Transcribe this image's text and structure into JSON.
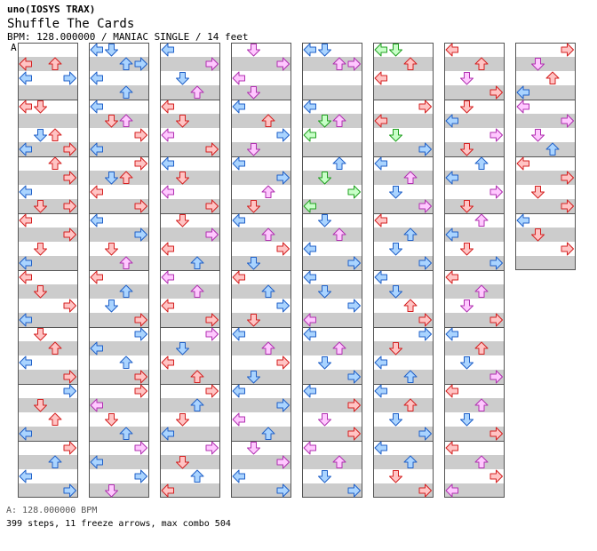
{
  "artist": "uno(IOSYS TRAX)",
  "title": "Shuffle The Cards",
  "info": "BPM: 128.000000 / MANIAC SINGLE / 14 feet",
  "bpm_marker": "A",
  "bpm_legend": "A: 128.000000 BPM",
  "stats": "399 steps, 11 freeze arrows, max combo 504",
  "colors": {
    "red_fill": "#ffc4c4",
    "red_stroke": "#d42020",
    "blue_fill": "#aad4ff",
    "blue_stroke": "#2060c8",
    "pink_fill": "#ffc8ff",
    "pink_stroke": "#b030b0",
    "green_fill": "#c8ffc8",
    "green_stroke": "#20a020",
    "stripe": "#cccccc",
    "border": "#555555"
  },
  "chart_data": {
    "type": "step-chart",
    "columns": 8,
    "measures_per_column": [
      8,
      8,
      8,
      8,
      8,
      8,
      8,
      4
    ],
    "lanes": [
      "left",
      "down",
      "up",
      "right"
    ],
    "notes": [
      [
        [
          0,
          1,
          0,
          "red"
        ],
        [
          0,
          1,
          2,
          "red"
        ],
        [
          0,
          2,
          0,
          "blue"
        ],
        [
          0,
          2,
          3,
          "blue"
        ],
        [
          1,
          0,
          0,
          "red"
        ],
        [
          1,
          0,
          1,
          "red"
        ],
        [
          1,
          2,
          1,
          "blue"
        ],
        [
          1,
          2,
          2,
          "red"
        ],
        [
          1,
          3,
          0,
          "blue"
        ],
        [
          1,
          3,
          3,
          "red"
        ],
        [
          2,
          0,
          2,
          "red"
        ],
        [
          2,
          1,
          3,
          "red"
        ],
        [
          2,
          2,
          0,
          "blue"
        ],
        [
          2,
          3,
          1,
          "red"
        ],
        [
          2,
          3,
          3,
          "red"
        ],
        [
          3,
          0,
          0,
          "red"
        ],
        [
          3,
          1,
          3,
          "red"
        ],
        [
          3,
          2,
          1,
          "red"
        ],
        [
          3,
          3,
          0,
          "blue"
        ],
        [
          4,
          0,
          0,
          "red"
        ],
        [
          4,
          1,
          1,
          "red"
        ],
        [
          4,
          2,
          3,
          "red"
        ],
        [
          4,
          3,
          0,
          "blue"
        ],
        [
          5,
          0,
          1,
          "red"
        ],
        [
          5,
          1,
          2,
          "red"
        ],
        [
          5,
          2,
          0,
          "blue"
        ],
        [
          5,
          3,
          3,
          "red"
        ],
        [
          6,
          0,
          3,
          "blue"
        ],
        [
          6,
          1,
          1,
          "red"
        ],
        [
          6,
          2,
          2,
          "red"
        ],
        [
          6,
          3,
          0,
          "blue"
        ],
        [
          7,
          0,
          3,
          "red"
        ],
        [
          7,
          1,
          2,
          "blue"
        ],
        [
          7,
          2,
          0,
          "blue"
        ],
        [
          7,
          3,
          3,
          "blue"
        ]
      ],
      [
        [
          0,
          0,
          0,
          "blue"
        ],
        [
          0,
          0,
          1,
          "blue"
        ],
        [
          0,
          1,
          2,
          "blue"
        ],
        [
          0,
          1,
          3,
          "blue"
        ],
        [
          0,
          2,
          0,
          "blue"
        ],
        [
          0,
          3,
          2,
          "blue"
        ],
        [
          1,
          0,
          0,
          "blue"
        ],
        [
          1,
          1,
          1,
          "red"
        ],
        [
          1,
          1,
          2,
          "pink"
        ],
        [
          1,
          2,
          3,
          "red"
        ],
        [
          1,
          3,
          0,
          "blue"
        ],
        [
          2,
          0,
          3,
          "red"
        ],
        [
          2,
          1,
          1,
          "blue"
        ],
        [
          2,
          1,
          2,
          "red"
        ],
        [
          2,
          2,
          0,
          "red"
        ],
        [
          2,
          3,
          3,
          "red"
        ],
        [
          3,
          0,
          0,
          "blue"
        ],
        [
          3,
          1,
          3,
          "blue"
        ],
        [
          3,
          2,
          1,
          "red"
        ],
        [
          3,
          3,
          2,
          "pink"
        ],
        [
          4,
          0,
          0,
          "red"
        ],
        [
          4,
          1,
          2,
          "blue"
        ],
        [
          4,
          2,
          1,
          "blue"
        ],
        [
          4,
          3,
          3,
          "red"
        ],
        [
          5,
          0,
          3,
          "blue"
        ],
        [
          5,
          1,
          0,
          "blue"
        ],
        [
          5,
          2,
          2,
          "blue"
        ],
        [
          5,
          3,
          3,
          "red"
        ],
        [
          6,
          0,
          3,
          "red"
        ],
        [
          6,
          1,
          0,
          "pink"
        ],
        [
          6,
          2,
          1,
          "red"
        ],
        [
          6,
          3,
          2,
          "blue"
        ],
        [
          7,
          0,
          3,
          "pink"
        ],
        [
          7,
          1,
          0,
          "blue"
        ],
        [
          7,
          2,
          3,
          "blue"
        ],
        [
          7,
          3,
          1,
          "pink"
        ]
      ],
      [
        [
          0,
          0,
          0,
          "blue"
        ],
        [
          0,
          1,
          3,
          "pink"
        ],
        [
          0,
          2,
          1,
          "blue"
        ],
        [
          0,
          3,
          2,
          "pink"
        ],
        [
          1,
          0,
          0,
          "red"
        ],
        [
          1,
          1,
          1,
          "red"
        ],
        [
          1,
          2,
          0,
          "pink"
        ],
        [
          1,
          3,
          3,
          "red"
        ],
        [
          2,
          0,
          0,
          "blue"
        ],
        [
          2,
          1,
          1,
          "red"
        ],
        [
          2,
          2,
          0,
          "pink"
        ],
        [
          2,
          3,
          3,
          "red"
        ],
        [
          3,
          0,
          1,
          "red"
        ],
        [
          3,
          1,
          3,
          "pink"
        ],
        [
          3,
          2,
          0,
          "red"
        ],
        [
          3,
          3,
          2,
          "blue"
        ],
        [
          4,
          0,
          0,
          "pink"
        ],
        [
          4,
          1,
          2,
          "pink"
        ],
        [
          4,
          2,
          0,
          "red"
        ],
        [
          4,
          3,
          3,
          "red"
        ],
        [
          5,
          0,
          3,
          "pink"
        ],
        [
          5,
          1,
          1,
          "blue"
        ],
        [
          5,
          2,
          0,
          "red"
        ],
        [
          5,
          3,
          2,
          "red"
        ],
        [
          6,
          0,
          3,
          "red"
        ],
        [
          6,
          1,
          2,
          "blue"
        ],
        [
          6,
          2,
          1,
          "red"
        ],
        [
          6,
          3,
          0,
          "blue"
        ],
        [
          7,
          0,
          3,
          "pink"
        ],
        [
          7,
          1,
          1,
          "red"
        ],
        [
          7,
          2,
          2,
          "blue"
        ],
        [
          7,
          3,
          0,
          "red"
        ]
      ],
      [
        [
          0,
          0,
          1,
          "pink"
        ],
        [
          0,
          1,
          3,
          "pink"
        ],
        [
          0,
          2,
          0,
          "pink"
        ],
        [
          0,
          3,
          1,
          "pink"
        ],
        [
          1,
          0,
          0,
          "blue"
        ],
        [
          1,
          1,
          2,
          "red"
        ],
        [
          1,
          2,
          3,
          "blue"
        ],
        [
          1,
          3,
          1,
          "pink"
        ],
        [
          2,
          0,
          0,
          "blue"
        ],
        [
          2,
          1,
          3,
          "blue"
        ],
        [
          2,
          2,
          2,
          "pink"
        ],
        [
          2,
          3,
          1,
          "red"
        ],
        [
          3,
          0,
          0,
          "blue"
        ],
        [
          3,
          1,
          2,
          "pink"
        ],
        [
          3,
          2,
          3,
          "red"
        ],
        [
          3,
          3,
          1,
          "blue"
        ],
        [
          4,
          0,
          0,
          "red"
        ],
        [
          4,
          1,
          2,
          "blue"
        ],
        [
          4,
          2,
          3,
          "blue"
        ],
        [
          4,
          3,
          1,
          "red"
        ],
        [
          5,
          0,
          0,
          "blue"
        ],
        [
          5,
          1,
          2,
          "pink"
        ],
        [
          5,
          2,
          3,
          "red"
        ],
        [
          5,
          3,
          1,
          "blue"
        ],
        [
          6,
          0,
          0,
          "blue"
        ],
        [
          6,
          1,
          3,
          "blue"
        ],
        [
          6,
          2,
          0,
          "pink"
        ],
        [
          6,
          3,
          2,
          "blue"
        ],
        [
          7,
          0,
          1,
          "pink"
        ],
        [
          7,
          1,
          3,
          "pink"
        ],
        [
          7,
          2,
          0,
          "blue"
        ],
        [
          7,
          3,
          3,
          "blue"
        ]
      ],
      [
        [
          0,
          0,
          0,
          "blue"
        ],
        [
          0,
          0,
          1,
          "blue"
        ],
        [
          0,
          1,
          2,
          "pink"
        ],
        [
          0,
          1,
          3,
          "pink"
        ],
        [
          1,
          0,
          0,
          "blue"
        ],
        [
          1,
          1,
          1,
          "green"
        ],
        [
          1,
          1,
          2,
          "pink"
        ],
        [
          1,
          2,
          0,
          "green"
        ],
        [
          2,
          0,
          2,
          "blue"
        ],
        [
          2,
          1,
          1,
          "green"
        ],
        [
          2,
          2,
          3,
          "green"
        ],
        [
          2,
          3,
          0,
          "green"
        ],
        [
          3,
          0,
          1,
          "blue"
        ],
        [
          3,
          1,
          2,
          "pink"
        ],
        [
          3,
          2,
          0,
          "blue"
        ],
        [
          3,
          3,
          3,
          "blue"
        ],
        [
          4,
          0,
          0,
          "blue"
        ],
        [
          4,
          1,
          1,
          "blue"
        ],
        [
          4,
          2,
          3,
          "blue"
        ],
        [
          4,
          3,
          0,
          "pink"
        ],
        [
          5,
          0,
          0,
          "blue"
        ],
        [
          5,
          1,
          2,
          "pink"
        ],
        [
          5,
          2,
          1,
          "blue"
        ],
        [
          5,
          3,
          3,
          "blue"
        ],
        [
          6,
          0,
          0,
          "blue"
        ],
        [
          6,
          1,
          3,
          "red"
        ],
        [
          6,
          2,
          1,
          "pink"
        ],
        [
          6,
          3,
          3,
          "red"
        ],
        [
          7,
          0,
          0,
          "pink"
        ],
        [
          7,
          1,
          2,
          "pink"
        ],
        [
          7,
          2,
          1,
          "blue"
        ],
        [
          7,
          3,
          3,
          "blue"
        ]
      ],
      [
        [
          0,
          0,
          0,
          "green"
        ],
        [
          0,
          0,
          1,
          "green"
        ],
        [
          0,
          1,
          2,
          "red"
        ],
        [
          0,
          2,
          0,
          "red"
        ],
        [
          1,
          0,
          3,
          "red"
        ],
        [
          1,
          1,
          0,
          "red"
        ],
        [
          1,
          2,
          1,
          "green"
        ],
        [
          1,
          3,
          3,
          "blue"
        ],
        [
          2,
          0,
          0,
          "blue"
        ],
        [
          2,
          1,
          2,
          "pink"
        ],
        [
          2,
          2,
          1,
          "blue"
        ],
        [
          2,
          3,
          3,
          "pink"
        ],
        [
          3,
          0,
          0,
          "red"
        ],
        [
          3,
          1,
          2,
          "blue"
        ],
        [
          3,
          2,
          1,
          "blue"
        ],
        [
          3,
          3,
          3,
          "blue"
        ],
        [
          4,
          0,
          0,
          "blue"
        ],
        [
          4,
          1,
          1,
          "blue"
        ],
        [
          4,
          2,
          2,
          "red"
        ],
        [
          4,
          3,
          3,
          "red"
        ],
        [
          5,
          0,
          3,
          "blue"
        ],
        [
          5,
          1,
          1,
          "red"
        ],
        [
          5,
          2,
          0,
          "blue"
        ],
        [
          5,
          3,
          2,
          "blue"
        ],
        [
          6,
          0,
          0,
          "blue"
        ],
        [
          6,
          1,
          2,
          "red"
        ],
        [
          6,
          2,
          1,
          "blue"
        ],
        [
          6,
          3,
          3,
          "blue"
        ],
        [
          7,
          0,
          0,
          "blue"
        ],
        [
          7,
          1,
          2,
          "blue"
        ],
        [
          7,
          2,
          1,
          "red"
        ],
        [
          7,
          3,
          3,
          "red"
        ]
      ],
      [
        [
          0,
          0,
          0,
          "red"
        ],
        [
          0,
          1,
          2,
          "red"
        ],
        [
          0,
          2,
          1,
          "pink"
        ],
        [
          0,
          3,
          3,
          "red"
        ],
        [
          1,
          0,
          1,
          "red"
        ],
        [
          1,
          1,
          0,
          "blue"
        ],
        [
          1,
          2,
          3,
          "pink"
        ],
        [
          1,
          3,
          1,
          "red"
        ],
        [
          2,
          0,
          2,
          "blue"
        ],
        [
          2,
          1,
          0,
          "blue"
        ],
        [
          2,
          2,
          3,
          "pink"
        ],
        [
          2,
          3,
          1,
          "red"
        ],
        [
          3,
          0,
          2,
          "pink"
        ],
        [
          3,
          1,
          0,
          "blue"
        ],
        [
          3,
          2,
          1,
          "red"
        ],
        [
          3,
          3,
          3,
          "blue"
        ],
        [
          4,
          0,
          0,
          "red"
        ],
        [
          4,
          1,
          2,
          "pink"
        ],
        [
          4,
          2,
          1,
          "pink"
        ],
        [
          4,
          3,
          3,
          "red"
        ],
        [
          5,
          0,
          0,
          "blue"
        ],
        [
          5,
          1,
          2,
          "red"
        ],
        [
          5,
          2,
          1,
          "blue"
        ],
        [
          5,
          3,
          3,
          "pink"
        ],
        [
          6,
          0,
          0,
          "red"
        ],
        [
          6,
          1,
          2,
          "pink"
        ],
        [
          6,
          2,
          1,
          "blue"
        ],
        [
          6,
          3,
          3,
          "red"
        ],
        [
          7,
          0,
          0,
          "red"
        ],
        [
          7,
          1,
          2,
          "pink"
        ],
        [
          7,
          2,
          3,
          "red"
        ],
        [
          7,
          3,
          0,
          "pink"
        ]
      ],
      [
        [
          0,
          0,
          3,
          "red"
        ],
        [
          0,
          1,
          1,
          "pink"
        ],
        [
          0,
          2,
          2,
          "red"
        ],
        [
          0,
          3,
          0,
          "blue"
        ],
        [
          1,
          0,
          0,
          "pink"
        ],
        [
          1,
          1,
          3,
          "pink"
        ],
        [
          1,
          2,
          1,
          "pink"
        ],
        [
          1,
          3,
          2,
          "blue"
        ],
        [
          2,
          0,
          0,
          "red"
        ],
        [
          2,
          1,
          3,
          "red"
        ],
        [
          2,
          2,
          1,
          "red"
        ],
        [
          2,
          3,
          3,
          "red"
        ],
        [
          3,
          0,
          0,
          "blue"
        ],
        [
          3,
          1,
          1,
          "red"
        ],
        [
          3,
          2,
          3,
          "red"
        ]
      ]
    ]
  }
}
